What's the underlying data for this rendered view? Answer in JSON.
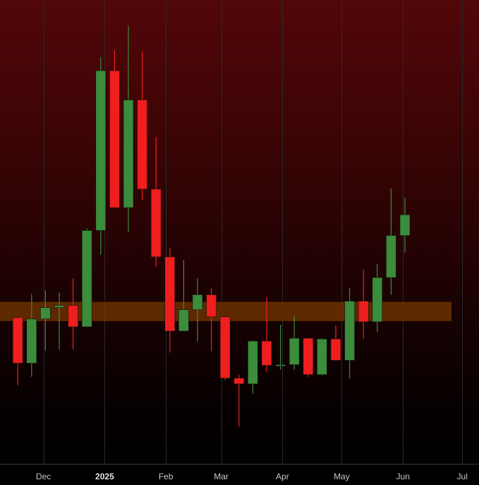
{
  "chart_data": {
    "type": "candlestick",
    "interval": "weekly",
    "x_ticks": [
      {
        "label": "Dec",
        "date": "2024-12-01"
      },
      {
        "label": "2025",
        "date": "2025-01-01",
        "major": true
      },
      {
        "label": "Feb",
        "date": "2025-02-01"
      },
      {
        "label": "Mar",
        "date": "2025-03-01"
      },
      {
        "label": "Apr",
        "date": "2025-04-01"
      },
      {
        "label": "May",
        "date": "2025-05-01"
      },
      {
        "label": "Jun",
        "date": "2025-06-01"
      },
      {
        "label": "Jul",
        "date": "2025-07-01"
      }
    ],
    "x_range": [
      "2024-11-09",
      "2025-07-13"
    ],
    "y_range": [
      0,
      650
    ],
    "grid": {
      "vertical": true,
      "horizontal": false
    },
    "zone": {
      "low": 200,
      "high": 227
    },
    "candles": [
      {
        "date": "2024-11-18",
        "open": 205,
        "high": 205,
        "low": 110,
        "close": 141
      },
      {
        "date": "2024-11-25",
        "open": 141,
        "high": 238,
        "low": 122,
        "close": 203
      },
      {
        "date": "2024-12-02",
        "open": 203,
        "high": 243,
        "low": 159,
        "close": 219
      },
      {
        "date": "2024-12-09",
        "open": 219,
        "high": 240,
        "low": 160,
        "close": 222
      },
      {
        "date": "2024-12-16",
        "open": 222,
        "high": 260,
        "low": 160,
        "close": 192
      },
      {
        "date": "2024-12-23",
        "open": 192,
        "high": 330,
        "low": 192,
        "close": 327
      },
      {
        "date": "2024-12-30",
        "open": 327,
        "high": 570,
        "low": 293,
        "close": 551
      },
      {
        "date": "2025-01-06",
        "open": 551,
        "high": 580,
        "low": 360,
        "close": 359
      },
      {
        "date": "2025-01-13",
        "open": 359,
        "high": 614,
        "low": 325,
        "close": 510
      },
      {
        "date": "2025-01-20",
        "open": 510,
        "high": 578,
        "low": 370,
        "close": 385
      },
      {
        "date": "2025-01-27",
        "open": 385,
        "high": 458,
        "low": 276,
        "close": 290
      },
      {
        "date": "2025-02-03",
        "open": 290,
        "high": 302,
        "low": 156,
        "close": 186
      },
      {
        "date": "2025-02-10",
        "open": 186,
        "high": 286,
        "low": 186,
        "close": 216
      },
      {
        "date": "2025-02-17",
        "open": 216,
        "high": 260,
        "low": 171,
        "close": 237
      },
      {
        "date": "2025-02-24",
        "open": 237,
        "high": 246,
        "low": 158,
        "close": 206
      },
      {
        "date": "2025-03-03",
        "open": 206,
        "high": 206,
        "low": 117,
        "close": 120
      },
      {
        "date": "2025-03-10",
        "open": 120,
        "high": 125,
        "low": 52,
        "close": 112
      },
      {
        "date": "2025-03-17",
        "open": 112,
        "high": 173,
        "low": 98,
        "close": 172
      },
      {
        "date": "2025-03-24",
        "open": 172,
        "high": 234,
        "low": 129,
        "close": 138
      },
      {
        "date": "2025-03-31",
        "open": 138,
        "high": 195,
        "low": 132,
        "close": 139
      },
      {
        "date": "2025-04-07",
        "open": 139,
        "high": 208,
        "low": 132,
        "close": 176
      },
      {
        "date": "2025-04-14",
        "open": 176,
        "high": 176,
        "low": 122,
        "close": 125
      },
      {
        "date": "2025-04-21",
        "open": 125,
        "high": 176,
        "low": 124,
        "close": 175
      },
      {
        "date": "2025-04-28",
        "open": 175,
        "high": 194,
        "low": 144,
        "close": 145
      },
      {
        "date": "2025-05-05",
        "open": 145,
        "high": 246,
        "low": 120,
        "close": 228
      },
      {
        "date": "2025-05-12",
        "open": 228,
        "high": 272,
        "low": 175,
        "close": 199
      },
      {
        "date": "2025-05-19",
        "open": 199,
        "high": 280,
        "low": 185,
        "close": 261
      },
      {
        "date": "2025-05-26",
        "open": 261,
        "high": 386,
        "low": 237,
        "close": 320
      },
      {
        "date": "2025-06-02",
        "open": 320,
        "high": 373,
        "low": 296,
        "close": 349
      }
    ],
    "colors": {
      "up": "#3b8c3b",
      "down": "#f01e1e",
      "zone": "#6b3000",
      "grid": "#2a2a2a",
      "tick_text": "#c8c8c8"
    }
  }
}
